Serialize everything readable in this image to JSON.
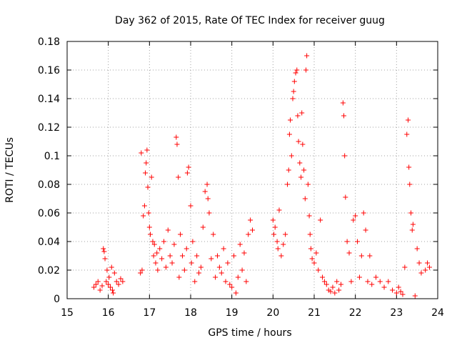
{
  "chart_data": {
    "type": "scatter",
    "title": "Day 362 of 2015, Rate Of TEC Index for receiver guug",
    "xlabel": "GPS time / hours",
    "ylabel": "ROTI / TECUs",
    "xlim": [
      15,
      24
    ],
    "ylim": [
      0,
      0.18
    ],
    "x_ticks": [
      "15",
      "16",
      "17",
      "18",
      "19",
      "20",
      "21",
      "22",
      "23",
      "24"
    ],
    "y_ticks": [
      "0",
      "0.02",
      "0.04",
      "0.06",
      "0.08",
      "0.1",
      "0.12",
      "0.14",
      "0.16",
      "0.18"
    ],
    "grid": true,
    "marker": "+",
    "series_color": "#ff0000",
    "series": [
      {
        "name": "ROTI",
        "points": [
          [
            15.65,
            0.008
          ],
          [
            15.7,
            0.01
          ],
          [
            15.75,
            0.012
          ],
          [
            15.8,
            0.006
          ],
          [
            15.85,
            0.009
          ],
          [
            15.88,
            0.035
          ],
          [
            15.9,
            0.033
          ],
          [
            15.92,
            0.028
          ],
          [
            15.95,
            0.012
          ],
          [
            15.97,
            0.02
          ],
          [
            16.0,
            0.01
          ],
          [
            16.02,
            0.015
          ],
          [
            16.05,
            0.008
          ],
          [
            16.08,
            0.022
          ],
          [
            16.1,
            0.006
          ],
          [
            16.12,
            0.004
          ],
          [
            16.15,
            0.018
          ],
          [
            16.2,
            0.012
          ],
          [
            16.25,
            0.01
          ],
          [
            16.3,
            0.014
          ],
          [
            16.35,
            0.012
          ],
          [
            16.78,
            0.018
          ],
          [
            16.8,
            0.102
          ],
          [
            16.82,
            0.02
          ],
          [
            16.85,
            0.058
          ],
          [
            16.88,
            0.065
          ],
          [
            16.9,
            0.088
          ],
          [
            16.92,
            0.095
          ],
          [
            16.94,
            0.104
          ],
          [
            16.96,
            0.078
          ],
          [
            16.98,
            0.06
          ],
          [
            17.0,
            0.05
          ],
          [
            17.02,
            0.045
          ],
          [
            17.05,
            0.085
          ],
          [
            17.08,
            0.04
          ],
          [
            17.1,
            0.03
          ],
          [
            17.12,
            0.038
          ],
          [
            17.15,
            0.025
          ],
          [
            17.18,
            0.032
          ],
          [
            17.2,
            0.02
          ],
          [
            17.25,
            0.035
          ],
          [
            17.3,
            0.028
          ],
          [
            17.35,
            0.04
          ],
          [
            17.4,
            0.022
          ],
          [
            17.45,
            0.048
          ],
          [
            17.5,
            0.03
          ],
          [
            17.55,
            0.025
          ],
          [
            17.6,
            0.038
          ],
          [
            17.65,
            0.113
          ],
          [
            17.67,
            0.108
          ],
          [
            17.7,
            0.085
          ],
          [
            17.72,
            0.015
          ],
          [
            17.75,
            0.045
          ],
          [
            17.8,
            0.03
          ],
          [
            17.85,
            0.02
          ],
          [
            17.9,
            0.035
          ],
          [
            17.92,
            0.088
          ],
          [
            17.95,
            0.092
          ],
          [
            18.0,
            0.065
          ],
          [
            18.02,
            0.025
          ],
          [
            18.05,
            0.04
          ],
          [
            18.1,
            0.012
          ],
          [
            18.15,
            0.03
          ],
          [
            18.2,
            0.018
          ],
          [
            18.25,
            0.022
          ],
          [
            18.3,
            0.05
          ],
          [
            18.35,
            0.075
          ],
          [
            18.4,
            0.08
          ],
          [
            18.42,
            0.07
          ],
          [
            18.45,
            0.06
          ],
          [
            18.5,
            0.028
          ],
          [
            18.55,
            0.045
          ],
          [
            18.6,
            0.015
          ],
          [
            18.65,
            0.03
          ],
          [
            18.7,
            0.022
          ],
          [
            18.75,
            0.018
          ],
          [
            18.8,
            0.035
          ],
          [
            18.85,
            0.012
          ],
          [
            18.9,
            0.025
          ],
          [
            18.95,
            0.01
          ],
          [
            19.0,
            0.008
          ],
          [
            19.05,
            0.03
          ],
          [
            19.1,
            0.004
          ],
          [
            19.15,
            0.015
          ],
          [
            19.2,
            0.038
          ],
          [
            19.25,
            0.02
          ],
          [
            19.3,
            0.032
          ],
          [
            19.35,
            0.012
          ],
          [
            19.4,
            0.045
          ],
          [
            19.45,
            0.055
          ],
          [
            19.5,
            0.048
          ],
          [
            20.0,
            0.055
          ],
          [
            20.02,
            0.045
          ],
          [
            20.05,
            0.05
          ],
          [
            20.1,
            0.04
          ],
          [
            20.12,
            0.035
          ],
          [
            20.15,
            0.062
          ],
          [
            20.2,
            0.03
          ],
          [
            20.25,
            0.038
          ],
          [
            20.3,
            0.045
          ],
          [
            20.35,
            0.08
          ],
          [
            20.38,
            0.09
          ],
          [
            20.4,
            0.115
          ],
          [
            20.42,
            0.125
          ],
          [
            20.45,
            0.1
          ],
          [
            20.48,
            0.14
          ],
          [
            20.5,
            0.145
          ],
          [
            20.52,
            0.152
          ],
          [
            20.55,
            0.158
          ],
          [
            20.58,
            0.16
          ],
          [
            20.6,
            0.128
          ],
          [
            20.62,
            0.11
          ],
          [
            20.65,
            0.095
          ],
          [
            20.68,
            0.085
          ],
          [
            20.7,
            0.13
          ],
          [
            20.72,
            0.108
          ],
          [
            20.75,
            0.09
          ],
          [
            20.78,
            0.07
          ],
          [
            20.8,
            0.16
          ],
          [
            20.82,
            0.17
          ],
          [
            20.85,
            0.08
          ],
          [
            20.88,
            0.058
          ],
          [
            20.9,
            0.045
          ],
          [
            20.92,
            0.035
          ],
          [
            20.95,
            0.028
          ],
          [
            21.0,
            0.025
          ],
          [
            21.05,
            0.032
          ],
          [
            21.1,
            0.02
          ],
          [
            21.15,
            0.055
          ],
          [
            21.2,
            0.015
          ],
          [
            21.25,
            0.012
          ],
          [
            21.3,
            0.01
          ],
          [
            21.35,
            0.006
          ],
          [
            21.4,
            0.005
          ],
          [
            21.45,
            0.008
          ],
          [
            21.5,
            0.004
          ],
          [
            21.55,
            0.012
          ],
          [
            21.6,
            0.006
          ],
          [
            21.65,
            0.01
          ],
          [
            21.7,
            0.137
          ],
          [
            21.72,
            0.128
          ],
          [
            21.74,
            0.1
          ],
          [
            21.76,
            0.071
          ],
          [
            21.8,
            0.04
          ],
          [
            21.85,
            0.032
          ],
          [
            21.9,
            0.012
          ],
          [
            21.95,
            0.055
          ],
          [
            22.0,
            0.058
          ],
          [
            22.05,
            0.04
          ],
          [
            22.1,
            0.015
          ],
          [
            22.15,
            0.03
          ],
          [
            22.2,
            0.06
          ],
          [
            22.25,
            0.048
          ],
          [
            22.3,
            0.012
          ],
          [
            22.35,
            0.03
          ],
          [
            22.4,
            0.01
          ],
          [
            22.5,
            0.015
          ],
          [
            22.6,
            0.012
          ],
          [
            22.7,
            0.008
          ],
          [
            22.8,
            0.012
          ],
          [
            22.9,
            0.006
          ],
          [
            23.0,
            0.004
          ],
          [
            23.05,
            0.008
          ],
          [
            23.1,
            0.005
          ],
          [
            23.15,
            0.003
          ],
          [
            23.2,
            0.022
          ],
          [
            23.25,
            0.115
          ],
          [
            23.28,
            0.125
          ],
          [
            23.3,
            0.092
          ],
          [
            23.32,
            0.08
          ],
          [
            23.35,
            0.06
          ],
          [
            23.38,
            0.048
          ],
          [
            23.4,
            0.052
          ],
          [
            23.45,
            0.002
          ],
          [
            23.5,
            0.035
          ],
          [
            23.55,
            0.025
          ],
          [
            23.6,
            0.018
          ],
          [
            23.7,
            0.02
          ],
          [
            23.75,
            0.025
          ],
          [
            23.8,
            0.022
          ]
        ]
      }
    ]
  }
}
